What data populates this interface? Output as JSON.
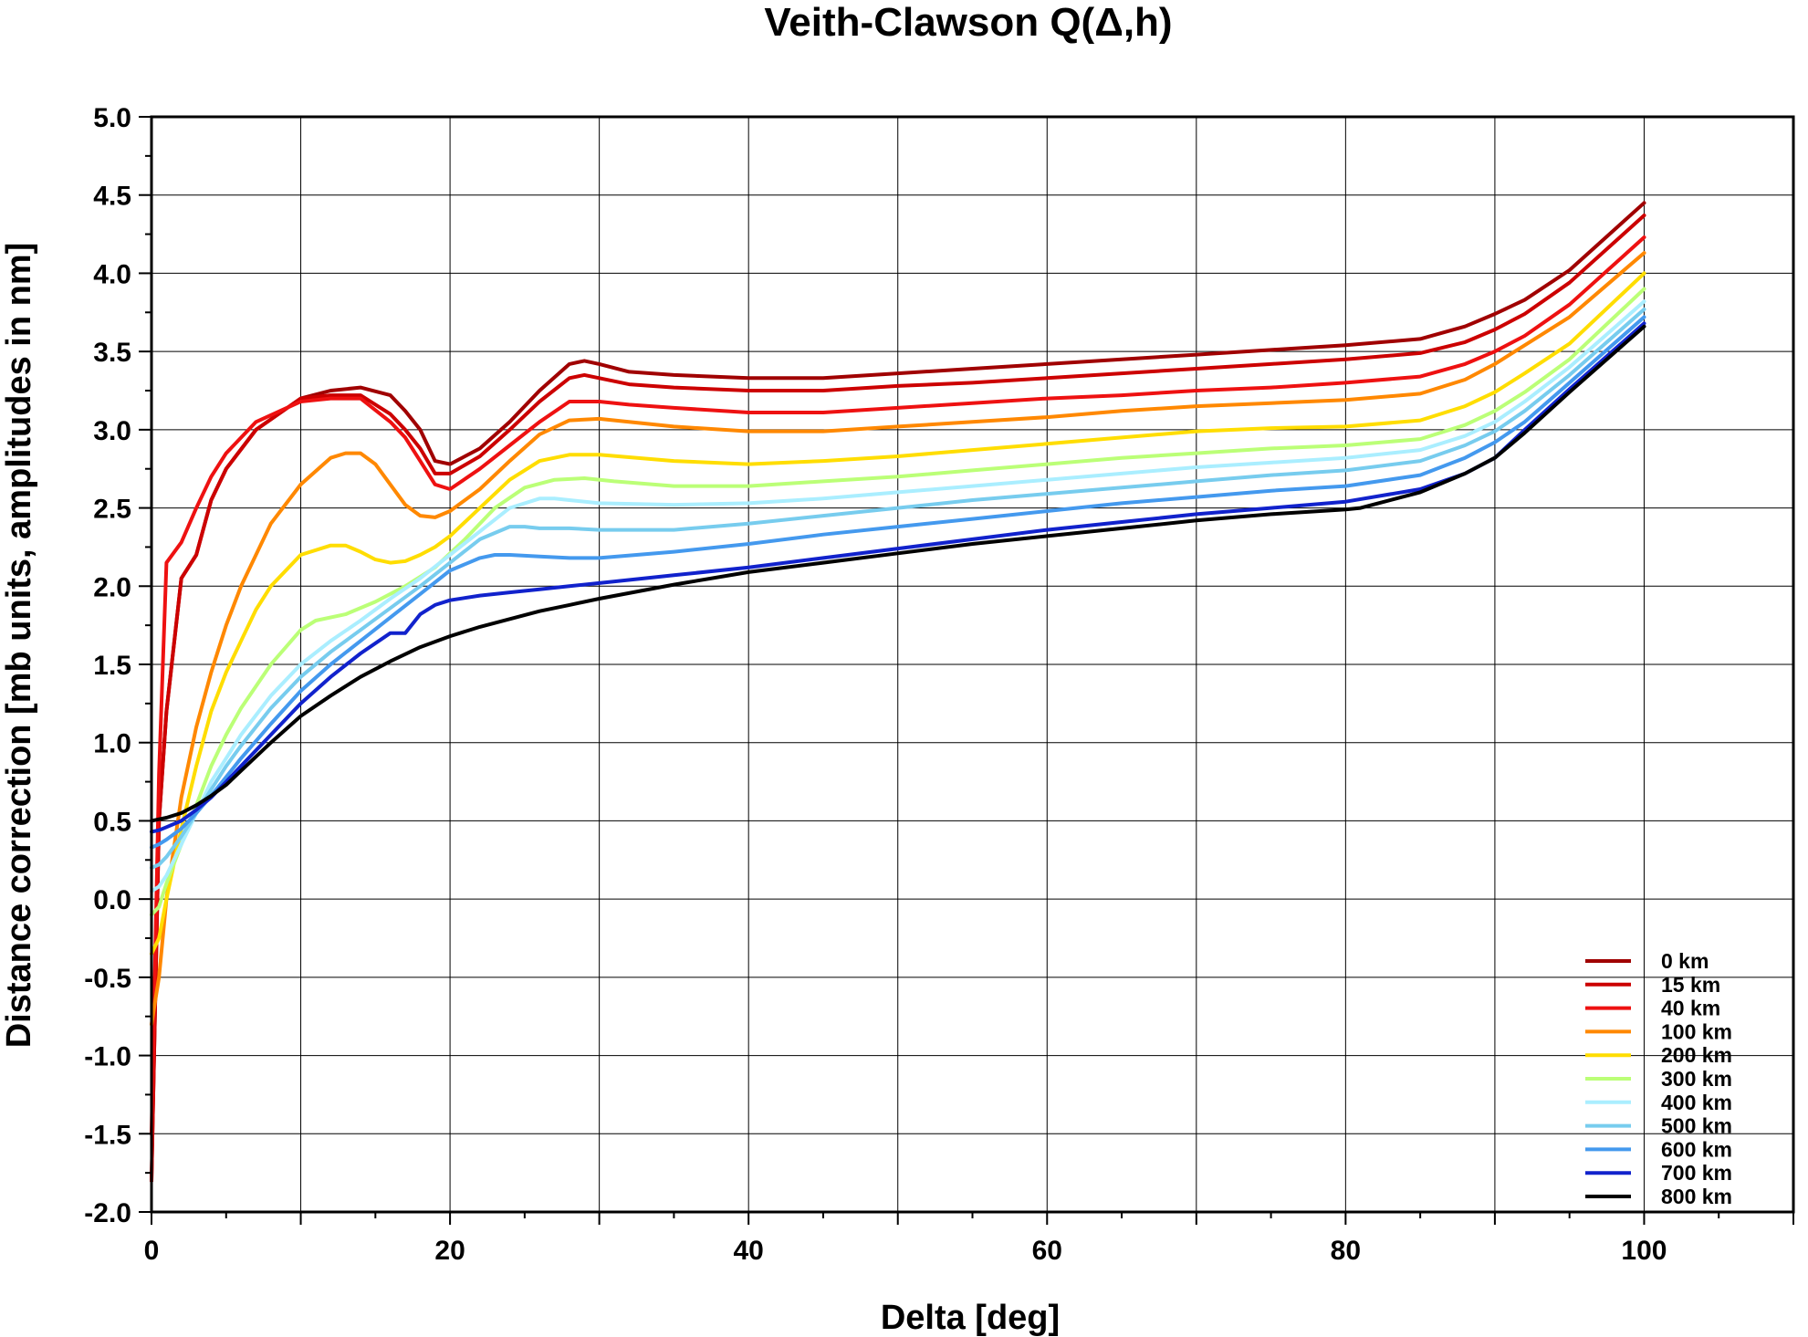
{
  "chart_data": {
    "type": "line",
    "title": "Veith-Clawson Q(Δ,h)",
    "xlabel": "Delta [deg]",
    "ylabel": "Distance correction [mb units, amplitudes in nm]",
    "xlim": [
      0,
      110
    ],
    "ylim": [
      -2.0,
      5.0
    ],
    "x_ticks": [
      0,
      20,
      40,
      60,
      80,
      100
    ],
    "x_tick_labels": [
      "0",
      "20",
      "40",
      "60",
      "80",
      "100"
    ],
    "y_ticks": [
      -2.0,
      -1.5,
      -1.0,
      -0.5,
      0.0,
      0.5,
      1.0,
      1.5,
      2.0,
      2.5,
      3.0,
      3.5,
      4.0,
      4.5,
      5.0
    ],
    "y_tick_labels": [
      "-2.0",
      "-1.5",
      "-1.0",
      "-0.5",
      "0.0",
      "0.5",
      "1.0",
      "1.5",
      "2.0",
      "2.5",
      "3.0",
      "3.5",
      "4.0",
      "4.5",
      "5.0"
    ],
    "grid": true,
    "legend_position": "bottom-right",
    "series": [
      {
        "name": "0 km",
        "color": "#a00000",
        "x": [
          0,
          0.5,
          1,
          2,
          3,
          4,
          5,
          7,
          10,
          12,
          14,
          16,
          17,
          18,
          19,
          20,
          22,
          24,
          26,
          28,
          29,
          30,
          32,
          35,
          40,
          45,
          50,
          55,
          60,
          65,
          70,
          75,
          80,
          85,
          88,
          90,
          92,
          95,
          100
        ],
        "y": [
          -1.8,
          0.5,
          1.2,
          2.05,
          2.2,
          2.55,
          2.75,
          3.0,
          3.2,
          3.25,
          3.27,
          3.22,
          3.12,
          3.0,
          2.8,
          2.78,
          2.88,
          3.05,
          3.25,
          3.42,
          3.44,
          3.42,
          3.37,
          3.35,
          3.33,
          3.33,
          3.36,
          3.39,
          3.42,
          3.45,
          3.48,
          3.51,
          3.54,
          3.58,
          3.66,
          3.74,
          3.83,
          4.02,
          4.45
        ]
      },
      {
        "name": "15 km",
        "color": "#cc0000",
        "x": [
          0,
          0.5,
          1,
          2,
          3,
          4,
          5,
          7,
          10,
          12,
          14,
          16,
          17,
          18,
          19,
          20,
          22,
          24,
          26,
          28,
          29,
          30,
          32,
          35,
          40,
          45,
          50,
          55,
          60,
          65,
          70,
          75,
          80,
          85,
          88,
          90,
          92,
          95,
          100
        ],
        "y": [
          -1.8,
          0.5,
          1.2,
          2.05,
          2.2,
          2.55,
          2.75,
          3.0,
          3.2,
          3.22,
          3.22,
          3.1,
          3.0,
          2.88,
          2.72,
          2.72,
          2.83,
          3.0,
          3.18,
          3.33,
          3.35,
          3.33,
          3.29,
          3.27,
          3.25,
          3.25,
          3.28,
          3.3,
          3.33,
          3.36,
          3.39,
          3.42,
          3.45,
          3.49,
          3.56,
          3.64,
          3.74,
          3.94,
          4.37
        ]
      },
      {
        "name": "40 km",
        "color": "#ee1111",
        "x": [
          0,
          0.5,
          1,
          2,
          3,
          4,
          5,
          7,
          10,
          12,
          14,
          16,
          17,
          18,
          19,
          20,
          22,
          24,
          26,
          28,
          30,
          32,
          35,
          40,
          45,
          50,
          55,
          60,
          65,
          70,
          75,
          80,
          85,
          88,
          90,
          92,
          95,
          100
        ],
        "y": [
          -1.5,
          0.8,
          2.15,
          2.28,
          2.5,
          2.7,
          2.85,
          3.05,
          3.18,
          3.2,
          3.2,
          3.05,
          2.95,
          2.8,
          2.65,
          2.62,
          2.75,
          2.9,
          3.05,
          3.18,
          3.18,
          3.16,
          3.14,
          3.11,
          3.11,
          3.14,
          3.17,
          3.2,
          3.22,
          3.25,
          3.27,
          3.3,
          3.34,
          3.42,
          3.5,
          3.6,
          3.8,
          4.23
        ]
      },
      {
        "name": "100 km",
        "color": "#ff8800",
        "x": [
          0,
          0.5,
          1,
          2,
          3,
          4,
          5,
          6,
          8,
          10,
          12,
          13,
          14,
          15,
          16,
          17,
          18,
          19,
          20,
          22,
          24,
          26,
          28,
          30,
          35,
          40,
          45,
          50,
          55,
          60,
          65,
          70,
          75,
          80,
          85,
          88,
          90,
          92,
          95,
          100
        ],
        "y": [
          -0.8,
          -0.5,
          0.0,
          0.65,
          1.1,
          1.45,
          1.75,
          2.0,
          2.4,
          2.65,
          2.82,
          2.85,
          2.85,
          2.78,
          2.65,
          2.52,
          2.45,
          2.44,
          2.48,
          2.62,
          2.8,
          2.97,
          3.06,
          3.07,
          3.02,
          2.99,
          2.99,
          3.02,
          3.05,
          3.08,
          3.12,
          3.15,
          3.17,
          3.19,
          3.23,
          3.32,
          3.42,
          3.54,
          3.72,
          4.13
        ]
      },
      {
        "name": "200 km",
        "color": "#ffdd00",
        "x": [
          0,
          0.5,
          1,
          2,
          3,
          4,
          5,
          6,
          7,
          8,
          10,
          12,
          13,
          14,
          15,
          16,
          17,
          18,
          19,
          20,
          22,
          24,
          26,
          28,
          30,
          35,
          40,
          45,
          50,
          55,
          60,
          65,
          70,
          75,
          80,
          85,
          88,
          90,
          92,
          95,
          100
        ],
        "y": [
          -0.35,
          -0.25,
          0.0,
          0.45,
          0.85,
          1.2,
          1.45,
          1.65,
          1.85,
          2.0,
          2.2,
          2.26,
          2.26,
          2.22,
          2.17,
          2.15,
          2.16,
          2.2,
          2.25,
          2.32,
          2.5,
          2.68,
          2.8,
          2.84,
          2.84,
          2.8,
          2.78,
          2.8,
          2.83,
          2.87,
          2.91,
          2.95,
          2.99,
          3.01,
          3.02,
          3.06,
          3.15,
          3.24,
          3.36,
          3.55,
          4.0
        ]
      },
      {
        "name": "300 km",
        "color": "#bbff77",
        "x": [
          0,
          0.5,
          1,
          2,
          3,
          4,
          5,
          6,
          8,
          10,
          11,
          13,
          15,
          17,
          19,
          21,
          23,
          25,
          27,
          29,
          31,
          35,
          40,
          45,
          50,
          55,
          60,
          65,
          70,
          75,
          80,
          85,
          88,
          90,
          92,
          95,
          100
        ],
        "y": [
          -0.1,
          -0.05,
          0.1,
          0.35,
          0.6,
          0.85,
          1.05,
          1.22,
          1.5,
          1.72,
          1.78,
          1.82,
          1.9,
          2.0,
          2.12,
          2.3,
          2.5,
          2.63,
          2.68,
          2.69,
          2.67,
          2.64,
          2.64,
          2.67,
          2.7,
          2.74,
          2.78,
          2.82,
          2.85,
          2.88,
          2.9,
          2.94,
          3.03,
          3.12,
          3.24,
          3.45,
          3.9
        ]
      },
      {
        "name": "400 km",
        "color": "#aaeeff",
        "x": [
          0,
          0.5,
          1,
          2,
          3,
          4,
          5,
          6,
          8,
          10,
          12,
          14,
          16,
          18,
          20,
          22,
          24,
          26,
          27,
          28,
          30,
          35,
          40,
          45,
          50,
          55,
          60,
          65,
          70,
          75,
          80,
          85,
          88,
          90,
          92,
          95,
          100
        ],
        "y": [
          0.05,
          0.08,
          0.15,
          0.35,
          0.55,
          0.75,
          0.9,
          1.05,
          1.3,
          1.5,
          1.65,
          1.78,
          1.92,
          2.05,
          2.2,
          2.35,
          2.5,
          2.56,
          2.56,
          2.55,
          2.53,
          2.52,
          2.53,
          2.56,
          2.6,
          2.64,
          2.68,
          2.72,
          2.76,
          2.79,
          2.82,
          2.87,
          2.96,
          3.05,
          3.18,
          3.4,
          3.82
        ]
      },
      {
        "name": "500 km",
        "color": "#77ccee",
        "x": [
          0,
          0.5,
          1,
          2,
          3,
          4,
          5,
          6,
          8,
          10,
          12,
          14,
          16,
          18,
          20,
          22,
          24,
          25,
          26,
          28,
          30,
          35,
          40,
          45,
          50,
          55,
          60,
          65,
          70,
          75,
          80,
          85,
          88,
          90,
          92,
          95,
          100
        ],
        "y": [
          0.2,
          0.22,
          0.27,
          0.4,
          0.55,
          0.7,
          0.85,
          0.98,
          1.22,
          1.42,
          1.58,
          1.72,
          1.86,
          2.0,
          2.15,
          2.3,
          2.38,
          2.38,
          2.37,
          2.37,
          2.36,
          2.36,
          2.4,
          2.45,
          2.5,
          2.55,
          2.59,
          2.63,
          2.67,
          2.71,
          2.74,
          2.8,
          2.9,
          2.99,
          3.12,
          3.35,
          3.77
        ]
      },
      {
        "name": "600 km",
        "color": "#4499ee",
        "x": [
          0,
          0.5,
          1,
          2,
          3,
          4,
          5,
          6,
          8,
          10,
          12,
          14,
          16,
          18,
          20,
          22,
          23,
          24,
          26,
          28,
          30,
          35,
          40,
          45,
          50,
          55,
          60,
          65,
          70,
          75,
          80,
          85,
          88,
          90,
          92,
          95,
          100
        ],
        "y": [
          0.33,
          0.35,
          0.38,
          0.45,
          0.55,
          0.66,
          0.78,
          0.9,
          1.12,
          1.33,
          1.5,
          1.65,
          1.8,
          1.95,
          2.1,
          2.18,
          2.2,
          2.2,
          2.19,
          2.18,
          2.18,
          2.22,
          2.27,
          2.33,
          2.38,
          2.43,
          2.48,
          2.53,
          2.57,
          2.61,
          2.64,
          2.71,
          2.82,
          2.92,
          3.05,
          3.3,
          3.72
        ]
      },
      {
        "name": "700 km",
        "color": "#1122cc",
        "x": [
          0,
          0.5,
          1,
          2,
          3,
          4,
          5,
          6,
          8,
          10,
          12,
          14,
          16,
          16.5,
          17,
          18,
          19,
          20,
          22,
          24,
          26,
          28,
          30,
          35,
          40,
          45,
          50,
          55,
          60,
          65,
          70,
          75,
          80,
          85,
          88,
          90,
          92,
          95,
          100
        ],
        "y": [
          0.43,
          0.44,
          0.46,
          0.5,
          0.57,
          0.65,
          0.75,
          0.85,
          1.05,
          1.25,
          1.42,
          1.57,
          1.7,
          1.7,
          1.7,
          1.82,
          1.88,
          1.91,
          1.94,
          1.96,
          1.98,
          2.0,
          2.02,
          2.07,
          2.12,
          2.18,
          2.24,
          2.3,
          2.36,
          2.41,
          2.46,
          2.5,
          2.54,
          2.62,
          2.72,
          2.82,
          3.0,
          3.26,
          3.68
        ]
      },
      {
        "name": "800 km",
        "color": "#000000",
        "x": [
          0,
          0.5,
          1,
          2,
          3,
          4,
          5,
          6,
          8,
          10,
          12,
          14,
          16,
          18,
          20,
          22,
          24,
          26,
          28,
          30,
          35,
          40,
          45,
          50,
          55,
          60,
          65,
          70,
          75,
          80,
          81,
          85,
          88,
          90,
          92,
          95,
          100
        ],
        "y": [
          0.5,
          0.51,
          0.52,
          0.55,
          0.6,
          0.66,
          0.73,
          0.82,
          1.0,
          1.17,
          1.3,
          1.42,
          1.52,
          1.61,
          1.68,
          1.74,
          1.79,
          1.84,
          1.88,
          1.92,
          2.01,
          2.09,
          2.15,
          2.21,
          2.27,
          2.32,
          2.37,
          2.42,
          2.46,
          2.49,
          2.5,
          2.6,
          2.72,
          2.82,
          2.98,
          3.24,
          3.66
        ]
      }
    ]
  }
}
